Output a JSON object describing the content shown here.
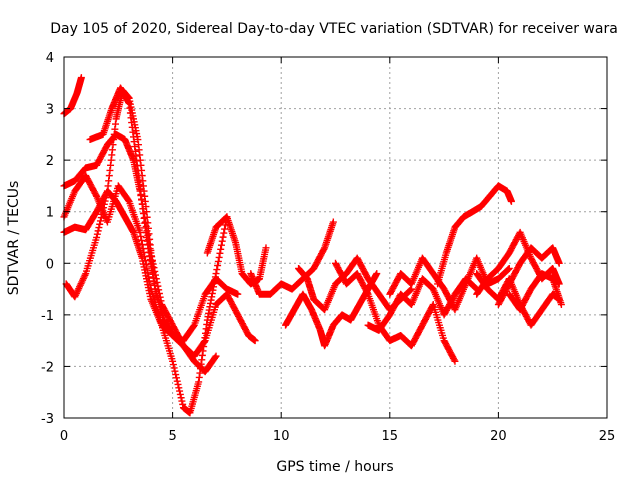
{
  "chart_data": {
    "type": "scatter",
    "title": "Day 105 of 2020, Sidereal Day-to-day VTEC variation (SDTVAR) for receiver wara",
    "xlabel": "GPS time / hours",
    "ylabel": "SDTVAR / TECUs",
    "xlim": [
      0,
      25
    ],
    "ylim": [
      -3,
      4
    ],
    "xticks": [
      0,
      5,
      10,
      15,
      20,
      25
    ],
    "yticks": [
      -3,
      -2,
      -1,
      0,
      1,
      2,
      3,
      4
    ],
    "grid": true,
    "marker": "plus",
    "color": "#ff0000",
    "series": [
      {
        "x": [
          0,
          0.3,
          0.6,
          0.8
        ],
        "y": [
          2.9,
          3.0,
          3.3,
          3.6
        ]
      },
      {
        "x": [
          0,
          0.5,
          1.0,
          1.5,
          2.0,
          2.4,
          2.8,
          3.2,
          3.5,
          4.0,
          4.5,
          5.0,
          5.5,
          6.0,
          6.5,
          7.0,
          7.5,
          8.0,
          8.5,
          8.8
        ],
        "y": [
          1.5,
          1.6,
          1.85,
          1.9,
          2.3,
          2.5,
          2.4,
          2.0,
          1.4,
          0.2,
          -0.8,
          -1.2,
          -1.6,
          -1.8,
          -1.5,
          -0.8,
          -0.6,
          -1.0,
          -1.4,
          -1.5
        ]
      },
      {
        "x": [
          0,
          0.5,
          1.0,
          1.5,
          2.0,
          2.4,
          2.8,
          3.2,
          3.6,
          4.0,
          4.5,
          5.0,
          5.5,
          6.0,
          6.5,
          7.0
        ],
        "y": [
          0.6,
          0.7,
          0.65,
          1.0,
          1.4,
          1.2,
          0.9,
          0.6,
          0.1,
          -0.7,
          -1.2,
          -1.4,
          -1.6,
          -1.9,
          -2.1,
          -1.8
        ]
      },
      {
        "x": [
          0,
          0.5,
          1.0,
          1.5,
          2.0,
          2.5,
          3.0,
          3.5,
          4.0,
          4.5,
          5.0,
          5.5,
          5.8,
          6.2,
          6.6,
          7.0,
          7.5
        ],
        "y": [
          0.9,
          1.4,
          1.7,
          1.3,
          0.8,
          1.5,
          1.2,
          0.6,
          -0.5,
          -1.2,
          -1.9,
          -2.8,
          -2.9,
          -2.3,
          -1.1,
          -0.2,
          0.9
        ]
      },
      {
        "x": [
          0.1,
          0.5,
          1.0,
          1.5,
          2.0,
          2.4,
          2.7,
          3.0,
          3.4,
          3.8,
          4.2,
          4.6,
          5.0,
          5.5,
          6.0,
          6.5,
          7.0,
          7.5,
          8.0
        ],
        "y": [
          -0.4,
          -0.65,
          -0.2,
          0.5,
          1.4,
          2.8,
          3.35,
          3.2,
          2.4,
          1.0,
          -0.5,
          -1.1,
          -1.4,
          -1.5,
          -1.2,
          -0.6,
          -0.3,
          -0.5,
          -0.6
        ]
      },
      {
        "x": [
          1.2,
          1.8,
          2.2,
          2.6,
          3.0,
          3.4,
          3.8,
          4.2
        ],
        "y": [
          2.4,
          2.5,
          3.0,
          3.4,
          3.1,
          1.8,
          0.5,
          -0.5
        ]
      },
      {
        "x": [
          6.6,
          7.0,
          7.5,
          7.9,
          8.2,
          8.6,
          9.0,
          9.3
        ],
        "y": [
          0.2,
          0.7,
          0.9,
          0.4,
          -0.2,
          -0.4,
          -0.3,
          0.3
        ]
      },
      {
        "x": [
          8.6,
          9.0,
          9.5,
          10.0,
          10.5,
          11.0,
          11.5,
          12.0,
          12.4
        ],
        "y": [
          -0.2,
          -0.6,
          -0.6,
          -0.4,
          -0.5,
          -0.3,
          -0.1,
          0.3,
          0.8
        ]
      },
      {
        "x": [
          10.2,
          10.6,
          11.0,
          11.4,
          11.8,
          12.0,
          12.4,
          12.8,
          13.2,
          13.6,
          14.0,
          14.4
        ],
        "y": [
          -1.2,
          -0.9,
          -0.6,
          -0.9,
          -1.3,
          -1.6,
          -1.2,
          -1.0,
          -1.1,
          -0.8,
          -0.5,
          -0.2
        ]
      },
      {
        "x": [
          10.8,
          11.2,
          11.5,
          12.0,
          12.5,
          13.0,
          13.5,
          14.0,
          14.5,
          15.0,
          15.5,
          16.0
        ],
        "y": [
          -0.1,
          -0.3,
          -0.7,
          -0.9,
          -0.4,
          -0.2,
          0.1,
          -0.3,
          -0.6,
          -0.9,
          -0.7,
          -0.5
        ]
      },
      {
        "x": [
          12.5,
          13.0,
          13.5,
          14.0,
          14.5,
          15.0,
          15.5,
          16.0,
          16.5,
          17.0,
          17.5,
          18.0
        ],
        "y": [
          0.0,
          -0.4,
          -0.2,
          -0.6,
          -1.2,
          -1.5,
          -1.4,
          -1.6,
          -1.2,
          -0.8,
          -1.5,
          -1.9
        ]
      },
      {
        "x": [
          14.0,
          14.5,
          15.0,
          15.5,
          16.0,
          16.5,
          17.0,
          17.5,
          18.0,
          18.5,
          19.0
        ],
        "y": [
          -1.2,
          -1.3,
          -1.0,
          -0.6,
          -0.8,
          -0.3,
          -0.5,
          -1.0,
          -0.6,
          -0.3,
          -0.5
        ]
      },
      {
        "x": [
          15.0,
          15.5,
          16.0,
          16.5,
          17.0,
          17.5,
          18.0,
          18.5,
          19.0,
          19.5,
          20.0,
          20.5
        ],
        "y": [
          -0.6,
          -0.2,
          -0.4,
          0.1,
          -0.2,
          -0.5,
          -0.9,
          -0.4,
          0.1,
          -0.4,
          -0.3,
          -0.1
        ]
      },
      {
        "x": [
          17.2,
          17.6,
          18.0,
          18.4,
          18.8,
          19.2,
          19.6,
          20.0,
          20.4,
          20.6
        ],
        "y": [
          -0.4,
          0.2,
          0.7,
          0.9,
          1.0,
          1.1,
          1.3,
          1.5,
          1.4,
          1.2
        ]
      },
      {
        "x": [
          19.0,
          19.5,
          20.0,
          20.5,
          21.0,
          21.5,
          22.0,
          22.5,
          22.8
        ],
        "y": [
          -0.6,
          -0.3,
          -0.1,
          0.2,
          0.6,
          0.1,
          -0.3,
          -0.1,
          -0.4
        ]
      },
      {
        "x": [
          20.0,
          20.5,
          21.0,
          21.5,
          22.0,
          22.5,
          22.8
        ],
        "y": [
          -0.8,
          -0.4,
          0.0,
          0.3,
          0.1,
          0.3,
          0.0
        ]
      },
      {
        "x": [
          19.0,
          19.5,
          20.0,
          20.5,
          21.0,
          21.5,
          22.0,
          22.5,
          22.8
        ],
        "y": [
          -0.2,
          -0.5,
          -0.7,
          -0.3,
          -0.8,
          -1.2,
          -0.9,
          -0.6,
          -0.7
        ]
      },
      {
        "x": [
          20.5,
          21.0,
          21.5,
          22.0,
          22.5,
          22.9
        ],
        "y": [
          -0.6,
          -0.9,
          -0.5,
          -0.2,
          -0.3,
          -0.8
        ]
      }
    ]
  }
}
